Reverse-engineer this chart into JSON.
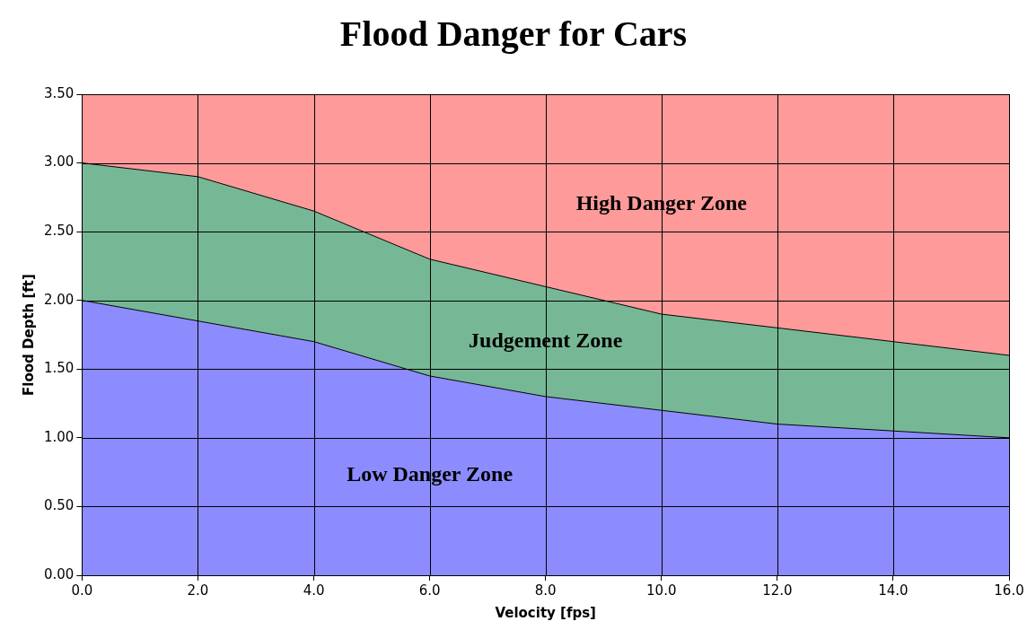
{
  "chart_data": {
    "type": "area",
    "title": "Flood Danger for Cars",
    "xlabel": "Velocity [fps]",
    "ylabel": "Flood Depth [ft]",
    "x": [
      0,
      2,
      4,
      6,
      8,
      10,
      12,
      14,
      16
    ],
    "stacked": true,
    "series": [
      {
        "name": "Low Danger Zone",
        "color": "#8c8cff",
        "values": [
          2.0,
          1.85,
          1.7,
          1.45,
          1.3,
          1.2,
          1.1,
          1.05,
          1.0
        ]
      },
      {
        "name": "Judgement Zone",
        "color": "#76b895",
        "values": [
          1.0,
          1.05,
          0.95,
          0.85,
          0.8,
          0.7,
          0.7,
          0.65,
          0.6
        ]
      },
      {
        "name": "High Danger Zone",
        "color": "#ff9a9a",
        "values": [
          0.5,
          0.6,
          0.85,
          1.2,
          1.4,
          1.6,
          1.7,
          1.8,
          1.9
        ]
      }
    ],
    "xlim": [
      0,
      16
    ],
    "xticks": [
      {
        "value": 0,
        "label": "0.0"
      },
      {
        "value": 2,
        "label": "2.0"
      },
      {
        "value": 4,
        "label": "4.0"
      },
      {
        "value": 6,
        "label": "6.0"
      },
      {
        "value": 8,
        "label": "8.0"
      },
      {
        "value": 10,
        "label": "10.0"
      },
      {
        "value": 12,
        "label": "12.0"
      },
      {
        "value": 14,
        "label": "14.0"
      },
      {
        "value": 16,
        "label": "16.0"
      }
    ],
    "ylim": [
      0,
      3.5
    ],
    "yticks": [
      {
        "value": 0,
        "label": "0.00"
      },
      {
        "value": 0.5,
        "label": "0.50"
      },
      {
        "value": 1,
        "label": "1.00"
      },
      {
        "value": 1.5,
        "label": "1.50"
      },
      {
        "value": 2,
        "label": "2.00"
      },
      {
        "value": 2.5,
        "label": "2.50"
      },
      {
        "value": 3,
        "label": "3.00"
      },
      {
        "value": 3.5,
        "label": "3.50"
      }
    ],
    "grid": true,
    "legend": false,
    "marker": "none",
    "line_style": "solid"
  }
}
